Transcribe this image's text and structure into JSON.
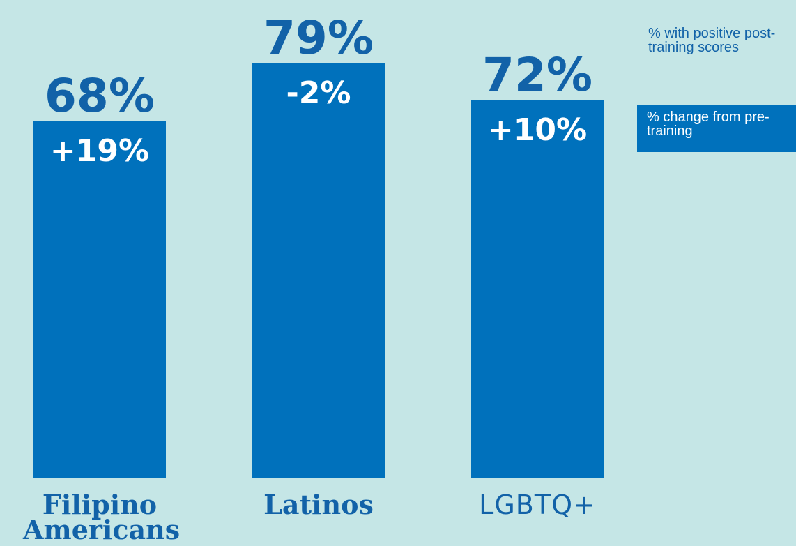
{
  "chart_data": {
    "type": "bar",
    "categories": [
      "Filipino Americans",
      "Latinos",
      "LGBTQ+"
    ],
    "series": [
      {
        "name": "% with positive post-training scores",
        "color": "#0071bc",
        "values": [
          68,
          79,
          72
        ],
        "value_labels": [
          "68%",
          "79%",
          "72%"
        ]
      },
      {
        "name": "% change from pre-training",
        "color": "#0071bc",
        "values": [
          19,
          -2,
          10
        ],
        "value_labels": [
          "+19%",
          "-2%",
          "+10%"
        ]
      }
    ],
    "ylim": [
      0,
      91
    ]
  }
}
